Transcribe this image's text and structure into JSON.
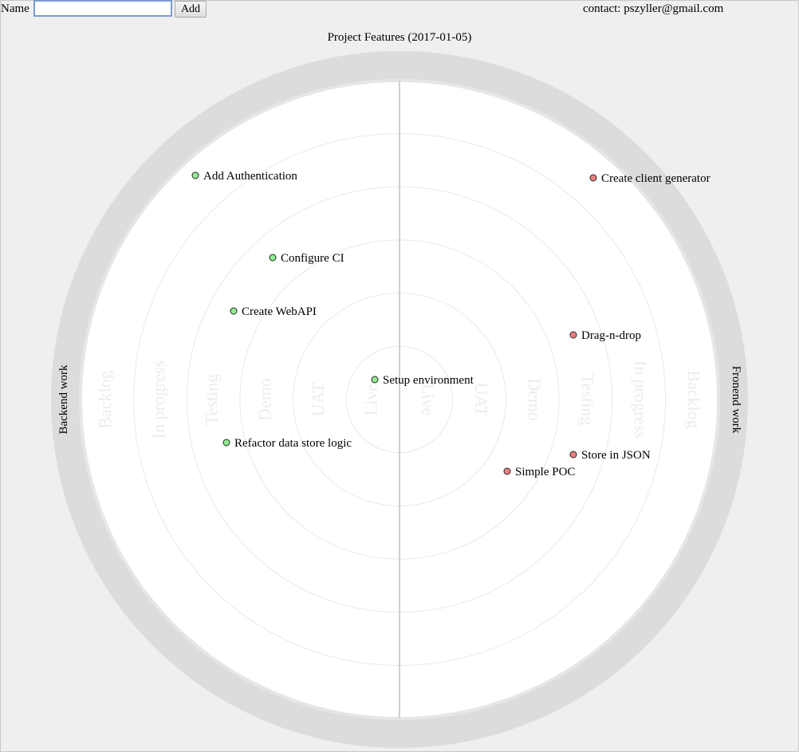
{
  "header": {
    "name_label": "Name",
    "name_value": "",
    "add_label": "Add",
    "contact": "contact: pszyller@gmail.com"
  },
  "radar": {
    "title": "Project Features (2017-01-05)",
    "left_half_label": "Backend work",
    "right_half_label": "Fronend work",
    "rings": [
      "Live",
      "UAT",
      "Demo",
      "Testing",
      "In progress",
      "Backlog"
    ],
    "colors": {
      "backend": "#90ee90",
      "frontend": "#f08080",
      "outer_band": "#dcdcdc",
      "ring_label": "#ececec"
    },
    "items": [
      {
        "label": "Add Authentication",
        "side": "backend"
      },
      {
        "label": "Configure CI",
        "side": "backend"
      },
      {
        "label": "Create WebAPI",
        "side": "backend"
      },
      {
        "label": "Setup environment",
        "side": "backend"
      },
      {
        "label": "Refactor data store logic",
        "side": "backend"
      },
      {
        "label": "Create client generator",
        "side": "frontend"
      },
      {
        "label": "Drag-n-drop",
        "side": "frontend"
      },
      {
        "label": "Store in JSON",
        "side": "frontend"
      },
      {
        "label": "Simple POC",
        "side": "frontend"
      }
    ]
  }
}
